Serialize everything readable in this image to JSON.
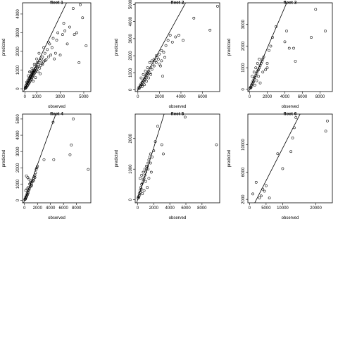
{
  "chart_data": [
    {
      "type": "scatter",
      "title": "fleet 1",
      "xlabel": "observed",
      "ylabel": "predicted",
      "xlim": [
        -200,
        5600
      ],
      "ylim": [
        -150,
        4600
      ],
      "xticks": [
        0,
        1000,
        3000,
        5000
      ],
      "yticks": [
        0,
        1000,
        2000,
        3000,
        4000
      ],
      "reference_line": {
        "slope": 1.3,
        "intercept": 0
      },
      "points": [
        [
          20,
          10
        ],
        [
          40,
          80
        ],
        [
          60,
          40
        ],
        [
          80,
          150
        ],
        [
          100,
          60
        ],
        [
          120,
          200
        ],
        [
          150,
          100
        ],
        [
          180,
          250
        ],
        [
          200,
          150
        ],
        [
          220,
          320
        ],
        [
          250,
          200
        ],
        [
          280,
          380
        ],
        [
          300,
          260
        ],
        [
          320,
          440
        ],
        [
          350,
          300
        ],
        [
          380,
          500
        ],
        [
          400,
          350
        ],
        [
          420,
          560
        ],
        [
          450,
          420
        ],
        [
          480,
          620
        ],
        [
          500,
          480
        ],
        [
          520,
          680
        ],
        [
          550,
          520
        ],
        [
          580,
          740
        ],
        [
          600,
          600
        ],
        [
          620,
          800
        ],
        [
          650,
          650
        ],
        [
          680,
          860
        ],
        [
          700,
          720
        ],
        [
          720,
          900
        ],
        [
          750,
          780
        ],
        [
          780,
          950
        ],
        [
          800,
          820
        ],
        [
          820,
          1000
        ],
        [
          850,
          880
        ],
        [
          880,
          1050
        ],
        [
          900,
          920
        ],
        [
          950,
          1100
        ],
        [
          1000,
          1000
        ],
        [
          1050,
          1150
        ],
        [
          1100,
          1300
        ],
        [
          1150,
          1200
        ],
        [
          1200,
          1400
        ],
        [
          1250,
          1100
        ],
        [
          1300,
          1500
        ],
        [
          1350,
          1250
        ],
        [
          1400,
          1600
        ],
        [
          1450,
          1350
        ],
        [
          1500,
          1700
        ],
        [
          1600,
          1450
        ],
        [
          1700,
          1900
        ],
        [
          1800,
          1550
        ],
        [
          1900,
          2100
        ],
        [
          2000,
          1700
        ],
        [
          2100,
          2400
        ],
        [
          2200,
          1800
        ],
        [
          2400,
          2700
        ],
        [
          2600,
          1900
        ],
        [
          2800,
          3000
        ],
        [
          3000,
          1800
        ],
        [
          3200,
          2900
        ],
        [
          3400,
          3100
        ],
        [
          3600,
          2400
        ],
        [
          3800,
          3300
        ],
        [
          4200,
          2900
        ],
        [
          4400,
          3000
        ],
        [
          4600,
          1400
        ],
        [
          4900,
          3800
        ],
        [
          5200,
          2300
        ],
        [
          300,
          700
        ],
        [
          500,
          900
        ],
        [
          700,
          400
        ],
        [
          900,
          600
        ],
        [
          1100,
          900
        ],
        [
          1300,
          800
        ],
        [
          1500,
          1300
        ],
        [
          1700,
          1500
        ],
        [
          2000,
          2500
        ],
        [
          2300,
          2200
        ],
        [
          2500,
          1600
        ],
        [
          1200,
          1900
        ],
        [
          1000,
          1600
        ],
        [
          800,
          1300
        ],
        [
          600,
          1100
        ],
        [
          400,
          900
        ],
        [
          1600,
          2200
        ],
        [
          2700,
          2600
        ],
        [
          3300,
          3500
        ],
        [
          4100,
          4300
        ],
        [
          4700,
          4500
        ],
        [
          150,
          350
        ],
        [
          250,
          450
        ],
        [
          350,
          550
        ],
        [
          450,
          650
        ],
        [
          550,
          750
        ],
        [
          650,
          900
        ],
        [
          750,
          1000
        ],
        [
          850,
          1200
        ],
        [
          950,
          1300
        ],
        [
          1050,
          1400
        ]
      ]
    },
    {
      "type": "scatter",
      "title": "fleet 2",
      "xlabel": "observed",
      "ylabel": "predicted",
      "xlim": [
        -250,
        7600
      ],
      "ylim": [
        -100,
        5100
      ],
      "xticks": [
        0,
        2000,
        4000,
        6000
      ],
      "yticks": [
        0,
        1000,
        2000,
        3000,
        4000,
        5000
      ],
      "reference_line": {
        "slope": 1.15,
        "intercept": 0
      },
      "points": [
        [
          50,
          50
        ],
        [
          100,
          150
        ],
        [
          150,
          100
        ],
        [
          200,
          250
        ],
        [
          250,
          200
        ],
        [
          300,
          350
        ],
        [
          350,
          300
        ],
        [
          400,
          450
        ],
        [
          450,
          400
        ],
        [
          500,
          550
        ],
        [
          550,
          500
        ],
        [
          600,
          650
        ],
        [
          650,
          600
        ],
        [
          700,
          800
        ],
        [
          750,
          700
        ],
        [
          800,
          900
        ],
        [
          850,
          850
        ],
        [
          900,
          1000
        ],
        [
          950,
          950
        ],
        [
          1000,
          1100
        ],
        [
          1100,
          1000
        ],
        [
          1200,
          1300
        ],
        [
          1300,
          1200
        ],
        [
          1400,
          1500
        ],
        [
          1500,
          1400
        ],
        [
          1600,
          1700
        ],
        [
          1700,
          1600
        ],
        [
          1800,
          1900
        ],
        [
          1900,
          1800
        ],
        [
          2000,
          2100
        ],
        [
          2100,
          1400
        ],
        [
          2200,
          2300
        ],
        [
          2300,
          800
        ],
        [
          2400,
          2200
        ],
        [
          2500,
          1900
        ],
        [
          2600,
          2600
        ],
        [
          2800,
          2900
        ],
        [
          3000,
          3200
        ],
        [
          3200,
          2800
        ],
        [
          3500,
          3100
        ],
        [
          3800,
          3200
        ],
        [
          4200,
          2900
        ],
        [
          5200,
          4200
        ],
        [
          6700,
          3500
        ],
        [
          7400,
          4900
        ],
        [
          300,
          700
        ],
        [
          500,
          900
        ],
        [
          700,
          1100
        ],
        [
          900,
          1300
        ],
        [
          1100,
          1600
        ],
        [
          1300,
          1700
        ],
        [
          1500,
          1800
        ],
        [
          1700,
          2000
        ],
        [
          2000,
          1500
        ],
        [
          2200,
          1700
        ],
        [
          400,
          200
        ],
        [
          600,
          300
        ],
        [
          800,
          500
        ],
        [
          1000,
          700
        ],
        [
          1200,
          900
        ]
      ]
    },
    {
      "type": "scatter",
      "title": "fleet 3",
      "xlabel": "observed",
      "ylabel": "predicted",
      "xlim": [
        -200,
        9400
      ],
      "ylim": [
        -100,
        4000
      ],
      "xticks": [
        0,
        2000,
        4000,
        6000,
        8000
      ],
      "yticks": [
        0,
        1000,
        2000,
        3000
      ],
      "reference_line": {
        "slope": 0.95,
        "intercept": 0
      },
      "points": [
        [
          50,
          50
        ],
        [
          100,
          100
        ],
        [
          150,
          80
        ],
        [
          200,
          200
        ],
        [
          250,
          150
        ],
        [
          300,
          300
        ],
        [
          350,
          250
        ],
        [
          400,
          400
        ],
        [
          450,
          350
        ],
        [
          500,
          500
        ],
        [
          600,
          550
        ],
        [
          700,
          650
        ],
        [
          800,
          750
        ],
        [
          900,
          850
        ],
        [
          1000,
          900
        ],
        [
          1100,
          1000
        ],
        [
          1200,
          1100
        ],
        [
          1300,
          1200
        ],
        [
          1400,
          1300
        ],
        [
          1500,
          1400
        ],
        [
          1600,
          1500
        ],
        [
          1800,
          900
        ],
        [
          2000,
          1000
        ],
        [
          2200,
          1800
        ],
        [
          2400,
          2000
        ],
        [
          2600,
          2400
        ],
        [
          3000,
          2900
        ],
        [
          4000,
          2200
        ],
        [
          4200,
          2700
        ],
        [
          4500,
          1900
        ],
        [
          5000,
          1900
        ],
        [
          5200,
          1300
        ],
        [
          7000,
          2400
        ],
        [
          7500,
          3700
        ],
        [
          8600,
          2700
        ],
        [
          300,
          600
        ],
        [
          500,
          800
        ],
        [
          700,
          1000
        ],
        [
          900,
          1200
        ],
        [
          1100,
          1400
        ],
        [
          600,
          200
        ],
        [
          800,
          400
        ],
        [
          1000,
          600
        ],
        [
          1200,
          300
        ],
        [
          1500,
          800
        ],
        [
          2000,
          1200
        ]
      ]
    },
    {
      "type": "scatter",
      "title": "fleet 4",
      "xlabel": "observed",
      "ylabel": "predicted",
      "xlim": [
        -300,
        10200
      ],
      "ylim": [
        -150,
        5300
      ],
      "xticks": [
        0,
        2000,
        4000,
        6000,
        8000
      ],
      "yticks": [
        0,
        1000,
        2000,
        3000,
        4000,
        5000
      ],
      "reference_line": {
        "slope": 1.1,
        "intercept": 0
      },
      "points": [
        [
          50,
          50
        ],
        [
          100,
          100
        ],
        [
          150,
          80
        ],
        [
          200,
          200
        ],
        [
          250,
          180
        ],
        [
          300,
          300
        ],
        [
          350,
          250
        ],
        [
          400,
          400
        ],
        [
          450,
          350
        ],
        [
          500,
          500
        ],
        [
          550,
          450
        ],
        [
          600,
          600
        ],
        [
          700,
          650
        ],
        [
          800,
          750
        ],
        [
          900,
          850
        ],
        [
          1000,
          950
        ],
        [
          1100,
          1050
        ],
        [
          1200,
          1150
        ],
        [
          1300,
          1250
        ],
        [
          1400,
          1350
        ],
        [
          1500,
          1450
        ],
        [
          1600,
          1550
        ],
        [
          1700,
          1700
        ],
        [
          1800,
          1900
        ],
        [
          1900,
          2000
        ],
        [
          2000,
          2100
        ],
        [
          1600,
          1400
        ],
        [
          1400,
          1200
        ],
        [
          3000,
          2500
        ],
        [
          4500,
          2500
        ],
        [
          4400,
          4800
        ],
        [
          7000,
          2800
        ],
        [
          7200,
          3400
        ],
        [
          7500,
          5000
        ],
        [
          9800,
          1900
        ],
        [
          300,
          1500
        ],
        [
          500,
          1400
        ],
        [
          700,
          1300
        ],
        [
          900,
          1100
        ],
        [
          1100,
          900
        ],
        [
          200,
          600
        ],
        [
          400,
          700
        ],
        [
          600,
          800
        ],
        [
          800,
          1000
        ],
        [
          1000,
          1200
        ]
      ]
    },
    {
      "type": "scatter",
      "title": "fleet 5",
      "xlabel": "observed",
      "ylabel": "predicted",
      "xlim": [
        -300,
        10200
      ],
      "ylim": [
        -100,
        2800
      ],
      "xticks": [
        0,
        2000,
        4000,
        6000,
        8000
      ],
      "yticks": [
        0,
        1000,
        2000
      ],
      "reference_line": {
        "slope": 0.85,
        "intercept": 0
      },
      "points": [
        [
          50,
          50
        ],
        [
          100,
          100
        ],
        [
          150,
          80
        ],
        [
          200,
          200
        ],
        [
          250,
          150
        ],
        [
          300,
          300
        ],
        [
          350,
          250
        ],
        [
          400,
          400
        ],
        [
          450,
          350
        ],
        [
          500,
          500
        ],
        [
          600,
          550
        ],
        [
          700,
          650
        ],
        [
          800,
          700
        ],
        [
          900,
          800
        ],
        [
          1000,
          900
        ],
        [
          1100,
          1000
        ],
        [
          1200,
          1100
        ],
        [
          1300,
          1200
        ],
        [
          1400,
          1300
        ],
        [
          1500,
          1400
        ],
        [
          1600,
          1500
        ],
        [
          1700,
          900
        ],
        [
          1800,
          1400
        ],
        [
          2000,
          1600
        ],
        [
          2200,
          1900
        ],
        [
          2500,
          2400
        ],
        [
          3000,
          1800
        ],
        [
          3200,
          1500
        ],
        [
          5900,
          2700
        ],
        [
          9800,
          1800
        ],
        [
          300,
          700
        ],
        [
          500,
          800
        ],
        [
          700,
          900
        ],
        [
          900,
          1000
        ],
        [
          1100,
          1100
        ],
        [
          1300,
          1000
        ],
        [
          600,
          200
        ],
        [
          800,
          300
        ],
        [
          1000,
          600
        ],
        [
          1200,
          400
        ],
        [
          1400,
          700
        ],
        [
          1600,
          1200
        ]
      ]
    },
    {
      "type": "scatter",
      "title": "fleet 6",
      "xlabel": "observed",
      "ylabel": "predicted",
      "xlim": [
        -500,
        25000
      ],
      "ylim": [
        1500,
        14500
      ],
      "xticks": [
        0,
        5000,
        10000,
        20000
      ],
      "yticks": [
        2000,
        6000,
        10000
      ],
      "reference_line": {
        "slope": 0.95,
        "intercept": 0
      },
      "points": [
        [
          1000,
          2800
        ],
        [
          2000,
          4500
        ],
        [
          3000,
          2200
        ],
        [
          4000,
          3500
        ],
        [
          5000,
          4000
        ],
        [
          6000,
          2200
        ],
        [
          8500,
          8700
        ],
        [
          10000,
          6500
        ],
        [
          12500,
          9000
        ],
        [
          13000,
          11000
        ],
        [
          13500,
          12500
        ],
        [
          14000,
          14000
        ],
        [
          23000,
          12000
        ],
        [
          23500,
          13500
        ],
        [
          3500,
          2500
        ],
        [
          4500,
          3200
        ]
      ]
    }
  ]
}
